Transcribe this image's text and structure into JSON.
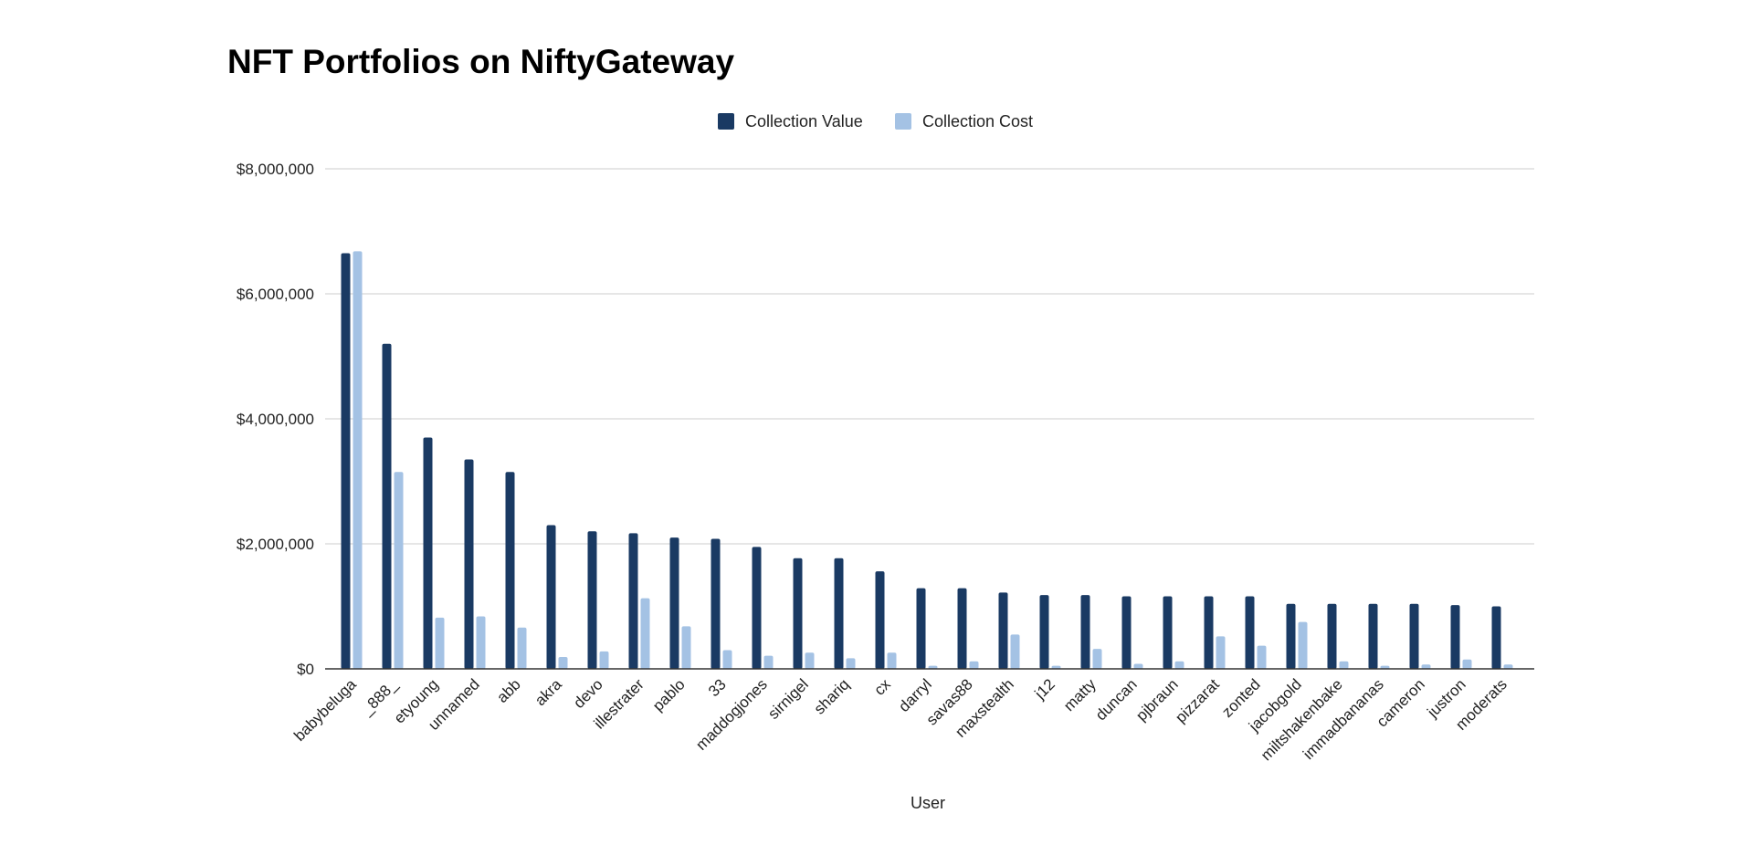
{
  "chart_data": {
    "type": "bar",
    "title": "NFT Portfolios on NiftyGateway",
    "xlabel": "User",
    "ylabel": "",
    "ylim": [
      0,
      8000000
    ],
    "yticks": [
      0,
      2000000,
      4000000,
      6000000,
      8000000
    ],
    "ytick_labels": [
      "$0",
      "$2,000,000",
      "$4,000,000",
      "$6,000,000",
      "$8,000,000"
    ],
    "grid": true,
    "legend_position": "top-center",
    "categories": [
      "babybeluga",
      "_888_",
      "etyoung",
      "unnamed",
      "abb",
      "akra",
      "devo",
      "illestrater",
      "pablo",
      "33",
      "maddogjones",
      "sirnigel",
      "shariq",
      "cx",
      "darryl",
      "savas88",
      "maxstealth",
      "j12",
      "matty",
      "duncan",
      "pjbraun",
      "pizzarat",
      "zonted",
      "jacobgold",
      "miltshakenbake",
      "immadbananas",
      "cameron",
      "justron",
      "moderats"
    ],
    "series": [
      {
        "name": "Collection Value",
        "color": "#1a3a63",
        "values": [
          6650000,
          5200000,
          3700000,
          3350000,
          3150000,
          2300000,
          2200000,
          2170000,
          2100000,
          2080000,
          1950000,
          1770000,
          1770000,
          1560000,
          1290000,
          1290000,
          1220000,
          1180000,
          1180000,
          1160000,
          1160000,
          1160000,
          1160000,
          1040000,
          1040000,
          1040000,
          1040000,
          1020000,
          1000000
        ]
      },
      {
        "name": "Collection Cost",
        "color": "#a4c2e4",
        "values": [
          6680000,
          3150000,
          820000,
          840000,
          660000,
          190000,
          280000,
          1130000,
          680000,
          300000,
          210000,
          260000,
          170000,
          260000,
          50000,
          120000,
          550000,
          50000,
          320000,
          80000,
          120000,
          520000,
          370000,
          750000,
          120000,
          50000,
          70000,
          150000,
          70000
        ]
      }
    ]
  }
}
